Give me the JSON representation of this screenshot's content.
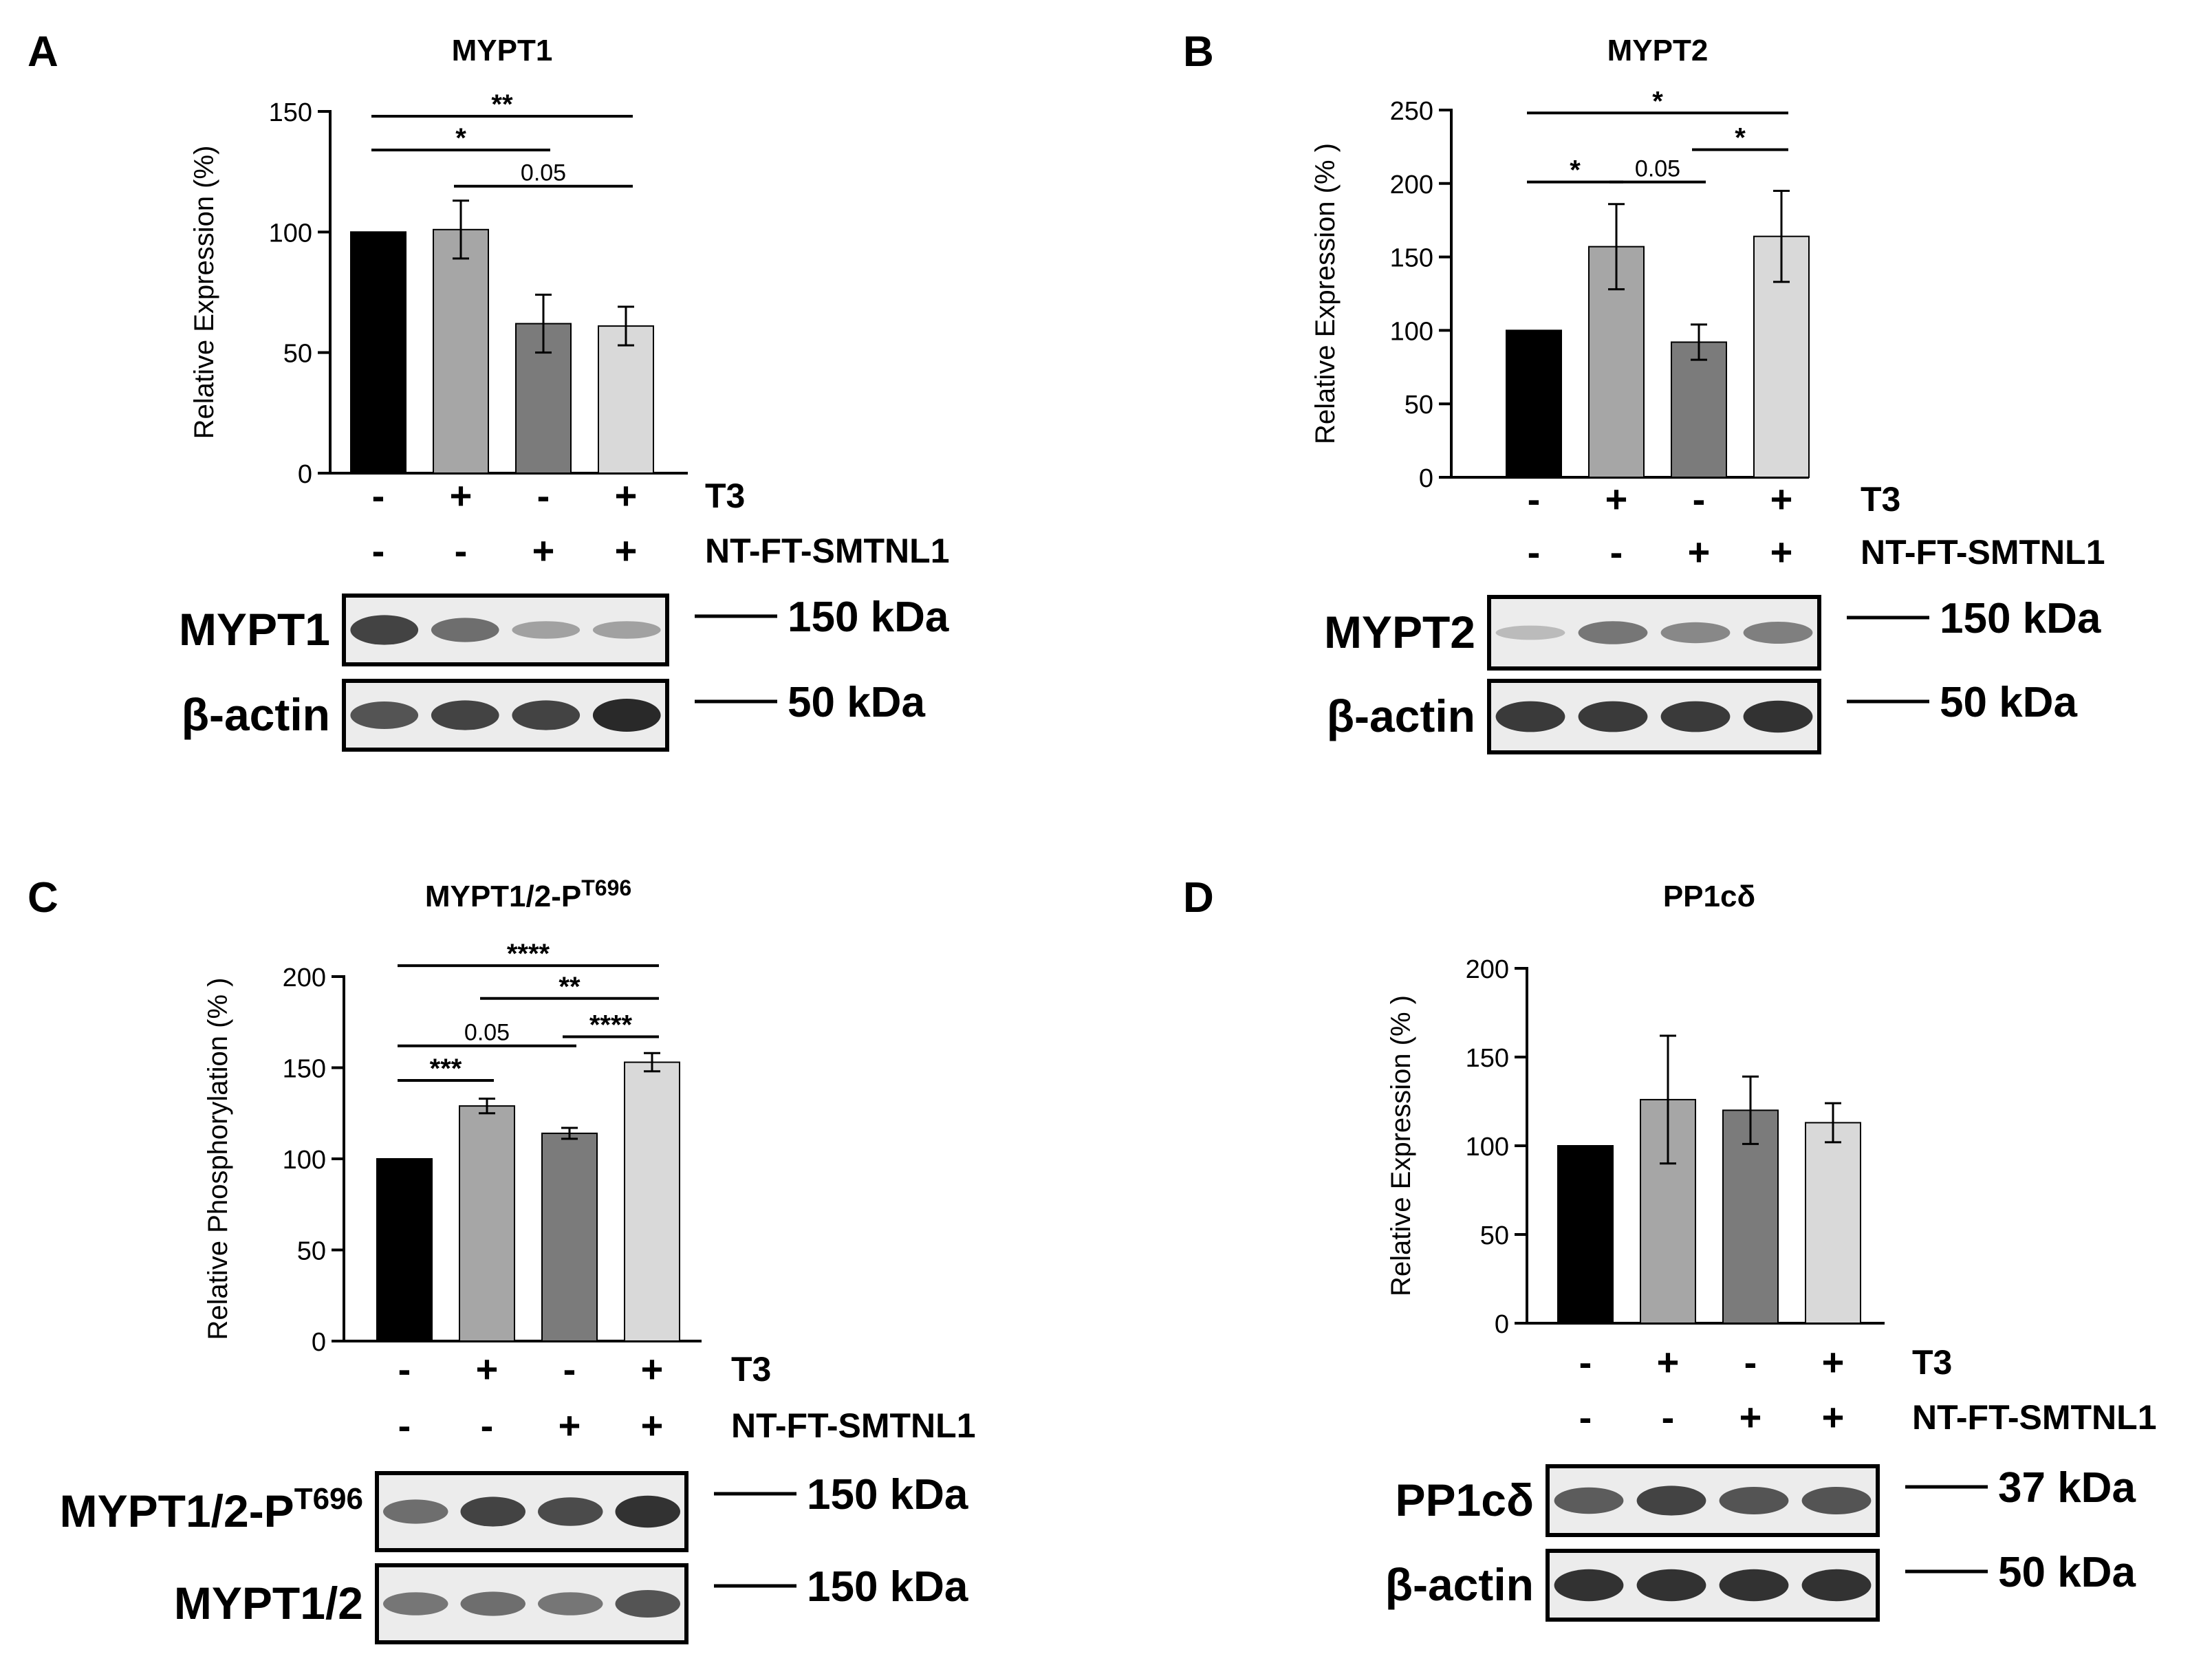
{
  "chart_data": [
    {
      "type": "bar",
      "panel_letter": "A",
      "title": "MYPT1",
      "ylabel": "Relative Expression (%)",
      "ylim": [
        0,
        150
      ],
      "yticks": [
        0,
        50,
        100,
        150
      ],
      "categories": [
        "-/-",
        "+/-",
        "-/+",
        "+/+"
      ],
      "values": [
        100,
        101,
        62,
        61
      ],
      "errors": [
        0,
        12,
        12,
        8
      ],
      "colors": [
        "#000000",
        "#a6a6a6",
        "#7b7b7b",
        "#d9d9d9"
      ],
      "treatments": [
        {
          "name": "T3",
          "signs": [
            "-",
            "+",
            "-",
            "+"
          ]
        },
        {
          "name": "NT-FT-SMTNL1",
          "signs": [
            "-",
            "-",
            "+",
            "+"
          ]
        }
      ],
      "significance": [
        {
          "from": 0,
          "to": 3,
          "label": "**",
          "y": 148
        },
        {
          "from": 0,
          "to": 2,
          "label": "*",
          "y": 134
        },
        {
          "from": 1,
          "to": 3,
          "label": "0.05",
          "y": 119
        }
      ],
      "blots": [
        {
          "label": "MYPT1",
          "marker": "150 kDa",
          "intensity": [
            0.85,
            0.6,
            0.3,
            0.3
          ]
        },
        {
          "label": "β-actin",
          "marker": "50 kDa",
          "intensity": [
            0.75,
            0.85,
            0.85,
            1.0
          ]
        }
      ]
    },
    {
      "type": "bar",
      "panel_letter": "B",
      "title": "MYPT2",
      "ylabel": "Relative Expression (% )",
      "ylim": [
        0,
        250
      ],
      "yticks": [
        0,
        50,
        100,
        150,
        200,
        250
      ],
      "categories": [
        "-/-",
        "+/-",
        "-/+",
        "+/+"
      ],
      "values": [
        100,
        157,
        92,
        164
      ],
      "errors": [
        0,
        29,
        12,
        31
      ],
      "colors": [
        "#000000",
        "#a6a6a6",
        "#7b7b7b",
        "#d9d9d9"
      ],
      "treatments": [
        {
          "name": "T3",
          "signs": [
            "-",
            "+",
            "-",
            "+"
          ]
        },
        {
          "name": "NT-FT-SMTNL1",
          "signs": [
            "-",
            "-",
            "+",
            "+"
          ]
        }
      ],
      "significance": [
        {
          "from": 0,
          "to": 3,
          "label": "*",
          "y": 248
        },
        {
          "from": 2,
          "to": 3,
          "label": "*",
          "y": 223
        },
        {
          "from": 0,
          "to": 1,
          "label": "*",
          "y": 201
        },
        {
          "from": 1,
          "to": 2,
          "label": "0.05",
          "y": 201
        }
      ],
      "blots": [
        {
          "label": "MYPT2",
          "marker": "150 kDa",
          "intensity": [
            0.15,
            0.55,
            0.45,
            0.5
          ]
        },
        {
          "label": "β-actin",
          "marker": "50 kDa",
          "intensity": [
            0.9,
            0.9,
            0.9,
            0.95
          ]
        }
      ]
    },
    {
      "type": "bar",
      "panel_letter": "C",
      "title": "MYPT1/2-P",
      "title_sup": "T696",
      "ylabel": "Relative Phosphorylation (% )",
      "ylim": [
        0,
        200
      ],
      "yticks": [
        0,
        50,
        100,
        150,
        200
      ],
      "categories": [
        "-/-",
        "+/-",
        "-/+",
        "+/+"
      ],
      "values": [
        100,
        129,
        114,
        153
      ],
      "errors": [
        0,
        4,
        3,
        5
      ],
      "colors": [
        "#000000",
        "#a6a6a6",
        "#7b7b7b",
        "#d9d9d9"
      ],
      "treatments": [
        {
          "name": "T3",
          "signs": [
            "-",
            "+",
            "-",
            "+"
          ]
        },
        {
          "name": "NT-FT-SMTNL1",
          "signs": [
            "-",
            "-",
            "+",
            "+"
          ]
        }
      ],
      "significance": [
        {
          "from": 0,
          "to": 3,
          "label": "****",
          "y": 206
        },
        {
          "from": 1,
          "to": 3,
          "label": "**",
          "y": 188
        },
        {
          "from": 0,
          "to": 2,
          "label": "0.05",
          "y": 162
        },
        {
          "from": 2,
          "to": 3,
          "label": "****",
          "y": 167
        },
        {
          "from": 0,
          "to": 1,
          "label": "***",
          "y": 143
        }
      ],
      "blots": [
        {
          "label": "MYPT1/2-P",
          "label_sup": "T696",
          "marker": "150 kDa",
          "intensity": [
            0.6,
            0.85,
            0.8,
            0.95
          ]
        },
        {
          "label": "MYPT1/2",
          "marker": "150 kDa",
          "intensity": [
            0.55,
            0.6,
            0.55,
            0.75
          ]
        }
      ]
    },
    {
      "type": "bar",
      "panel_letter": "D",
      "title": "PP1cδ",
      "ylabel": "Relative Expression (% )",
      "ylim": [
        0,
        200
      ],
      "yticks": [
        0,
        50,
        100,
        150,
        200
      ],
      "categories": [
        "-/-",
        "+/-",
        "-/+",
        "+/+"
      ],
      "values": [
        100,
        126,
        120,
        113
      ],
      "errors": [
        0,
        36,
        19,
        11
      ],
      "colors": [
        "#000000",
        "#a6a6a6",
        "#7b7b7b",
        "#d9d9d9"
      ],
      "treatments": [
        {
          "name": "T3",
          "signs": [
            "-",
            "+",
            "-",
            "+"
          ]
        },
        {
          "name": "NT-FT-SMTNL1",
          "signs": [
            "-",
            "-",
            "+",
            "+"
          ]
        }
      ],
      "significance": [],
      "blots": [
        {
          "label": "PP1cδ",
          "marker": "37 kDa",
          "intensity": [
            0.7,
            0.85,
            0.75,
            0.75
          ]
        },
        {
          "label": "β-actin",
          "marker": "50 kDa",
          "intensity": [
            0.95,
            0.95,
            0.95,
            0.95
          ]
        }
      ]
    }
  ]
}
